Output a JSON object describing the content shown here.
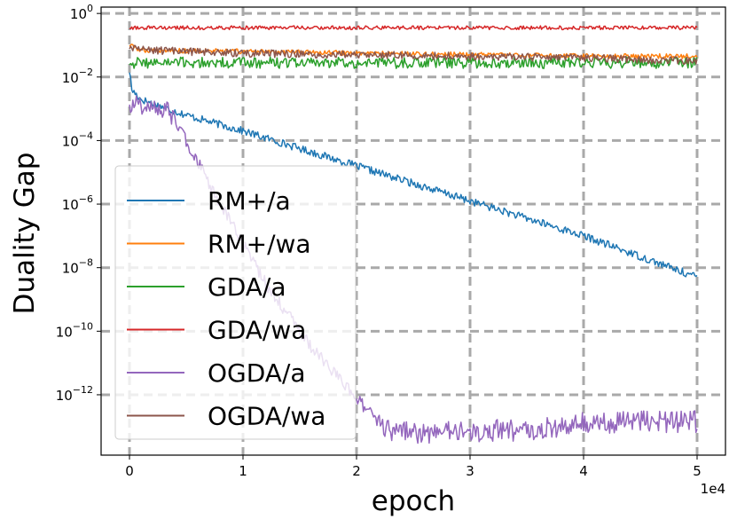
{
  "chart_data": {
    "type": "line",
    "xlabel": "epoch",
    "ylabel": "Duality Gap",
    "x_multiplier_label": "1e4",
    "xlim": [
      -2500,
      52500
    ],
    "ylim_log10": [
      -13.9,
      0.2
    ],
    "yscale": "log",
    "grid": true,
    "legend_position": "center-left",
    "x_ticks": [
      {
        "value": 0,
        "label": "0"
      },
      {
        "value": 10000,
        "label": "1"
      },
      {
        "value": 20000,
        "label": "2"
      },
      {
        "value": 30000,
        "label": "3"
      },
      {
        "value": 40000,
        "label": "4"
      },
      {
        "value": 50000,
        "label": "5"
      }
    ],
    "y_ticks": [
      {
        "exp": 0,
        "base": "10",
        "sup": "0"
      },
      {
        "exp": -2,
        "base": "10",
        "sup": "−2"
      },
      {
        "exp": -4,
        "base": "10",
        "sup": "−4"
      },
      {
        "exp": -6,
        "base": "10",
        "sup": "−6"
      },
      {
        "exp": -8,
        "base": "10",
        "sup": "−8"
      },
      {
        "exp": -10,
        "base": "10",
        "sup": "−10"
      },
      {
        "exp": -12,
        "base": "10",
        "sup": "−12"
      }
    ],
    "series": [
      {
        "name": "RM+/a",
        "color": "#1f77b4",
        "noise": 0.12,
        "x": [
          0,
          200,
          1000,
          3000,
          5000,
          10000,
          20000,
          30000,
          40000,
          50000
        ],
        "y_log10": [
          -1.8,
          -2.4,
          -2.7,
          -2.95,
          -3.2,
          -3.7,
          -4.8,
          -5.9,
          -7.0,
          -8.3
        ]
      },
      {
        "name": "RM+/wa",
        "color": "#ff7f0e",
        "noise": 0.08,
        "x": [
          0,
          1000,
          10000,
          20000,
          30000,
          40000,
          50000
        ],
        "y_log10": [
          -1.0,
          -1.15,
          -1.2,
          -1.25,
          -1.3,
          -1.35,
          -1.35
        ]
      },
      {
        "name": "GDA/a",
        "color": "#2ca02c",
        "noise": 0.18,
        "x": [
          0,
          50000
        ],
        "y_log10": [
          -1.55,
          -1.55
        ]
      },
      {
        "name": "GDA/wa",
        "color": "#d62728",
        "noise": 0.06,
        "x": [
          0,
          50000
        ],
        "y_log10": [
          -0.45,
          -0.45
        ]
      },
      {
        "name": "OGDA/a",
        "color": "#9467bd",
        "noise": 0.35,
        "x": [
          0,
          1000,
          2500,
          3500,
          5000,
          8000,
          12000,
          16000,
          19000,
          21000,
          22500,
          25000,
          30000,
          35000,
          38000,
          40000,
          45000,
          50000
        ],
        "y_log10": [
          -2.8,
          -2.9,
          -3.0,
          -3.1,
          -4.0,
          -6.0,
          -8.5,
          -10.5,
          -11.7,
          -12.5,
          -13.1,
          -13.2,
          -13.15,
          -13.1,
          -13.0,
          -12.9,
          -12.85,
          -12.85
        ]
      },
      {
        "name": "OGDA/wa",
        "color": "#8c564b",
        "noise": 0.12,
        "x": [
          0,
          1000,
          5000,
          10000,
          20000,
          30000,
          40000,
          50000
        ],
        "y_log10": [
          -1.1,
          -1.15,
          -1.2,
          -1.25,
          -1.3,
          -1.35,
          -1.4,
          -1.5
        ]
      }
    ]
  }
}
